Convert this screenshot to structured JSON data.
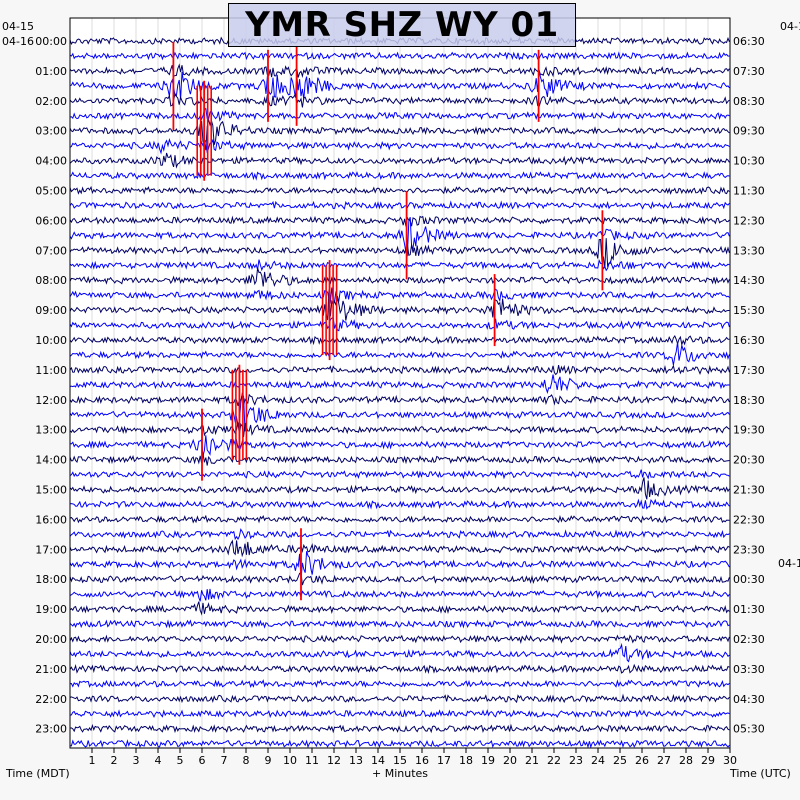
{
  "chart_data": {
    "type": "heatmap",
    "title": "YMR SHZ WY 01",
    "xlabel": "+ Minutes",
    "left_axis_label": "Time (MDT)",
    "right_axis_label": "Time (UTC)",
    "x_range": [
      0,
      30
    ],
    "x_ticks": [
      "1",
      "2",
      "3",
      "4",
      "5",
      "6",
      "7",
      "8",
      "9",
      "10",
      "11",
      "12",
      "13",
      "14",
      "15",
      "16",
      "17",
      "18",
      "19",
      "20",
      "21",
      "22",
      "23",
      "24",
      "25",
      "26",
      "27",
      "28",
      "29",
      "30"
    ],
    "left_date_labels": [
      "04-15",
      "04-16"
    ],
    "right_date_labels": [
      "04-1",
      "04-1"
    ],
    "left_hour_labels": [
      "00:00",
      "01:00",
      "02:00",
      "03:00",
      "04:00",
      "05:00",
      "06:00",
      "07:00",
      "08:00",
      "09:00",
      "10:00",
      "11:00",
      "12:00",
      "13:00",
      "14:00",
      "15:00",
      "16:00",
      "17:00",
      "18:00",
      "19:00",
      "20:00",
      "21:00",
      "22:00",
      "23:00"
    ],
    "right_hour_labels": [
      "06:30",
      "07:30",
      "08:30",
      "09:30",
      "10:30",
      "11:30",
      "12:30",
      "13:30",
      "14:30",
      "15:30",
      "16:30",
      "17:30",
      "18:30",
      "19:30",
      "20:30",
      "21:30",
      "22:30",
      "23:30",
      "00:30",
      "01:30",
      "02:30",
      "03:30",
      "04:30",
      "05:30"
    ],
    "traces_per_hour": 2,
    "trace_colors": [
      "#000066",
      "#0000ff"
    ],
    "clip_color": "#ff0000",
    "grid": true,
    "events": [
      {
        "hour": 1.5,
        "minute": 4.7,
        "amplitude": 2.2
      },
      {
        "hour": 1.5,
        "minute": 9.0,
        "amplitude": 1.8
      },
      {
        "hour": 1.5,
        "minute": 10.3,
        "amplitude": 2.0
      },
      {
        "hour": 1.5,
        "minute": 21.3,
        "amplitude": 1.8
      },
      {
        "hour": 3.0,
        "minute": 6.1,
        "amplitude": 2.5
      },
      {
        "hour": 3.8,
        "minute": 4.2,
        "amplitude": 1.2
      },
      {
        "hour": 6.5,
        "minute": 15.3,
        "amplitude": 2.2
      },
      {
        "hour": 7.0,
        "minute": 24.2,
        "amplitude": 2.0
      },
      {
        "hour": 8.0,
        "minute": 8.5,
        "amplitude": 1.6
      },
      {
        "hour": 9.0,
        "minute": 11.8,
        "amplitude": 2.5
      },
      {
        "hour": 9.0,
        "minute": 19.3,
        "amplitude": 1.8
      },
      {
        "hour": 10.5,
        "minute": 27.5,
        "amplitude": 1.5
      },
      {
        "hour": 11.5,
        "minute": 21.8,
        "amplitude": 1.3
      },
      {
        "hour": 12.5,
        "minute": 7.7,
        "amplitude": 2.5
      },
      {
        "hour": 13.5,
        "minute": 6.0,
        "amplitude": 1.8
      },
      {
        "hour": 15.0,
        "minute": 26.0,
        "amplitude": 1.2
      },
      {
        "hour": 17.0,
        "minute": 7.5,
        "amplitude": 1.3
      },
      {
        "hour": 17.5,
        "minute": 10.5,
        "amplitude": 1.8
      },
      {
        "hour": 18.7,
        "minute": 5.8,
        "amplitude": 1.0
      },
      {
        "hour": 20.5,
        "minute": 25.0,
        "amplitude": 0.9
      }
    ]
  }
}
